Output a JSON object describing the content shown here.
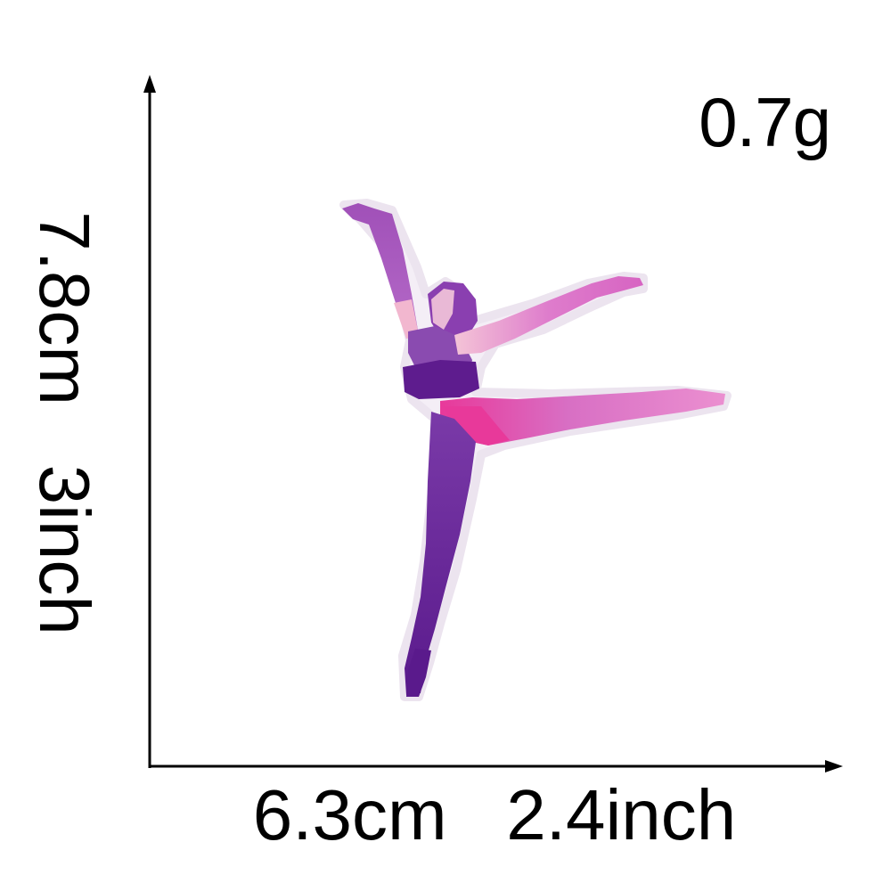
{
  "weight": "0.7g",
  "dimensions": {
    "width_cm": "6.3cm",
    "width_in": "2.4inch",
    "height_cm": "7.8cm",
    "height_in": "3inch"
  },
  "colors": {
    "axis": "#000000",
    "purple_dark": "#5a1a8c",
    "purple_mid": "#8a3fb0",
    "pink_bright": "#e8399a",
    "pink_light": "#e98fd0",
    "skin_light": "#f3c6d8"
  },
  "icons": {
    "patch": "ballerina-embroidered-patch"
  }
}
